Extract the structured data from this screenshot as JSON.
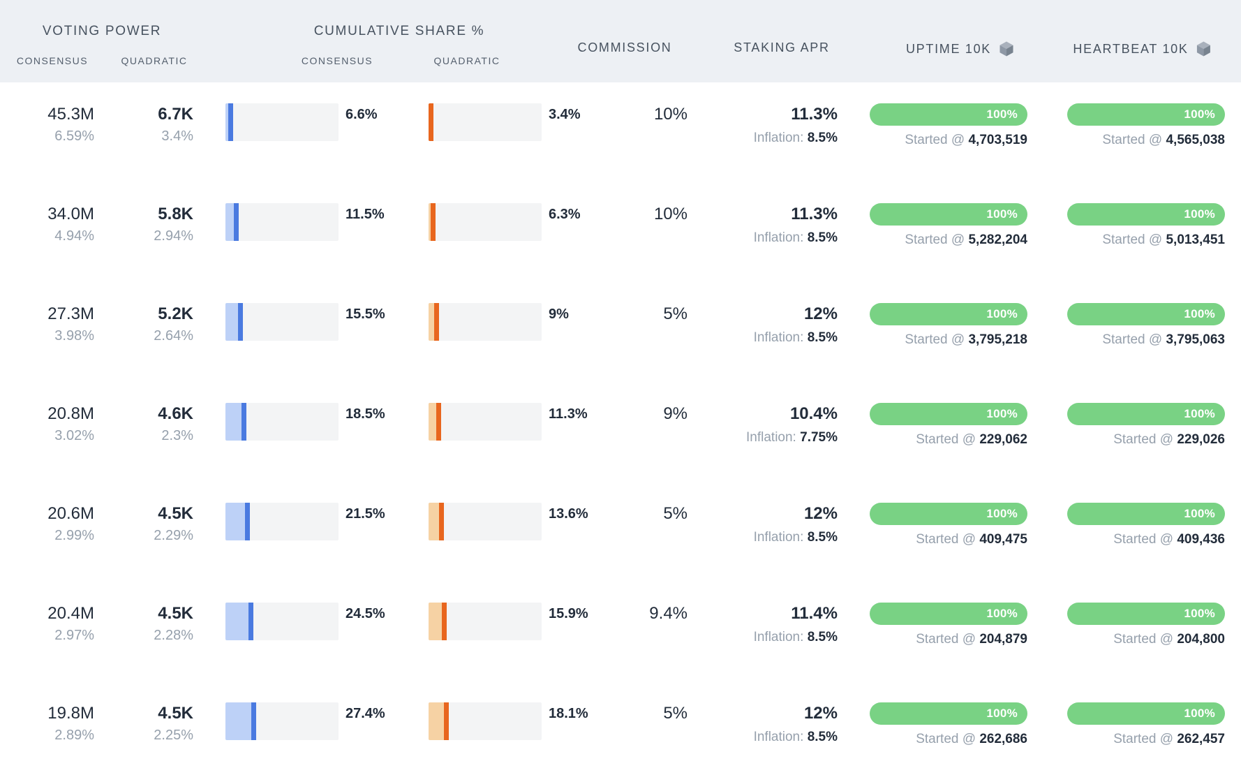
{
  "table": {
    "header": {
      "voting_power": "VOTING POWER",
      "voting_power_consensus": "CONSENSUS",
      "voting_power_quadratic": "QUADRATIC",
      "cumulative_share": "CUMULATIVE SHARE %",
      "cumulative_consensus": "CONSENSUS",
      "cumulative_quadratic": "QUADRATIC",
      "commission": "COMMISSION",
      "staking_apr": "STAKING APR",
      "uptime": "UPTIME 10K",
      "heartbeat": "HEARTBEAT 10K"
    },
    "labels": {
      "inflation": "Inflation:",
      "started_at": "Started @"
    },
    "colors": {
      "header_bg": "#edf0f4",
      "bar_bg": "#f3f4f5",
      "consensus_fill": "#bdd1f7",
      "consensus_marker": "#4a7ae0",
      "quadratic_fill": "#f6d2a4",
      "quadratic_marker": "#e8661e",
      "pill_green": "#79d284"
    },
    "rows": [
      {
        "vp_consensus": "45.3M",
        "vp_consensus_share": "6.59%",
        "vp_quadratic": "6.7K",
        "vp_quadratic_share": "3.4%",
        "cum_consensus_pct": "6.6%",
        "cum_quadratic_pct": "3.4%",
        "commission": "10%",
        "staking_apr": "11.3%",
        "inflation_value": "8.5%",
        "uptime_pct": "100%",
        "uptime_started": "4,703,519",
        "heartbeat_pct": "100%",
        "heartbeat_started": "4,565,038"
      },
      {
        "vp_consensus": "34.0M",
        "vp_consensus_share": "4.94%",
        "vp_quadratic": "5.8K",
        "vp_quadratic_share": "2.94%",
        "cum_consensus_pct": "11.5%",
        "cum_quadratic_pct": "6.3%",
        "commission": "10%",
        "staking_apr": "11.3%",
        "inflation_value": "8.5%",
        "uptime_pct": "100%",
        "uptime_started": "5,282,204",
        "heartbeat_pct": "100%",
        "heartbeat_started": "5,013,451"
      },
      {
        "vp_consensus": "27.3M",
        "vp_consensus_share": "3.98%",
        "vp_quadratic": "5.2K",
        "vp_quadratic_share": "2.64%",
        "cum_consensus_pct": "15.5%",
        "cum_quadratic_pct": "9%",
        "commission": "5%",
        "staking_apr": "12%",
        "inflation_value": "8.5%",
        "uptime_pct": "100%",
        "uptime_started": "3,795,218",
        "heartbeat_pct": "100%",
        "heartbeat_started": "3,795,063"
      },
      {
        "vp_consensus": "20.8M",
        "vp_consensus_share": "3.02%",
        "vp_quadratic": "4.6K",
        "vp_quadratic_share": "2.3%",
        "cum_consensus_pct": "18.5%",
        "cum_quadratic_pct": "11.3%",
        "commission": "9%",
        "staking_apr": "10.4%",
        "inflation_value": "7.75%",
        "uptime_pct": "100%",
        "uptime_started": "229,062",
        "heartbeat_pct": "100%",
        "heartbeat_started": "229,026"
      },
      {
        "vp_consensus": "20.6M",
        "vp_consensus_share": "2.99%",
        "vp_quadratic": "4.5K",
        "vp_quadratic_share": "2.29%",
        "cum_consensus_pct": "21.5%",
        "cum_quadratic_pct": "13.6%",
        "commission": "5%",
        "staking_apr": "12%",
        "inflation_value": "8.5%",
        "uptime_pct": "100%",
        "uptime_started": "409,475",
        "heartbeat_pct": "100%",
        "heartbeat_started": "409,436"
      },
      {
        "vp_consensus": "20.4M",
        "vp_consensus_share": "2.97%",
        "vp_quadratic": "4.5K",
        "vp_quadratic_share": "2.28%",
        "cum_consensus_pct": "24.5%",
        "cum_quadratic_pct": "15.9%",
        "commission": "9.4%",
        "staking_apr": "11.4%",
        "inflation_value": "8.5%",
        "uptime_pct": "100%",
        "uptime_started": "204,879",
        "heartbeat_pct": "100%",
        "heartbeat_started": "204,800"
      },
      {
        "vp_consensus": "19.8M",
        "vp_consensus_share": "2.89%",
        "vp_quadratic": "4.5K",
        "vp_quadratic_share": "2.25%",
        "cum_consensus_pct": "27.4%",
        "cum_quadratic_pct": "18.1%",
        "commission": "5%",
        "staking_apr": "12%",
        "inflation_value": "8.5%",
        "uptime_pct": "100%",
        "uptime_started": "262,686",
        "heartbeat_pct": "100%",
        "heartbeat_started": "262,457"
      }
    ]
  }
}
